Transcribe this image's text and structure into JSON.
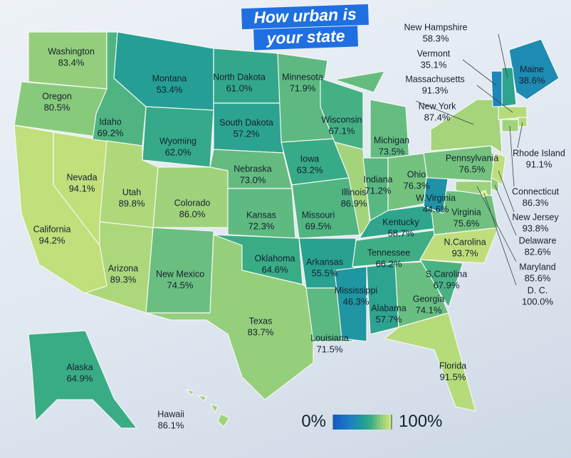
{
  "title": [
    "How urban is",
    "your state"
  ],
  "legend": {
    "ticks": [
      {
        "value": 0,
        "label": "0%"
      },
      {
        "value": 100,
        "label": "100%"
      }
    ]
  },
  "states": [
    {
      "name": "Washington",
      "value": 83.4,
      "value_label": "83.4%"
    },
    {
      "name": "Oregon",
      "value": 80.5,
      "value_label": "80.5%"
    },
    {
      "name": "California",
      "value": 94.2,
      "value_label": "94.2%"
    },
    {
      "name": "Nevada",
      "value": 94.1,
      "value_label": "94.1%"
    },
    {
      "name": "Idaho",
      "value": 69.2,
      "value_label": "69.2%"
    },
    {
      "name": "Montana",
      "value": 53.4,
      "value_label": "53.4%"
    },
    {
      "name": "Wyoming",
      "value": 62.0,
      "value_label": "62.0%"
    },
    {
      "name": "Utah",
      "value": 89.8,
      "value_label": "89.8%"
    },
    {
      "name": "Colorado",
      "value": 86.0,
      "value_label": "86.0%"
    },
    {
      "name": "Arizona",
      "value": 89.3,
      "value_label": "89.3%"
    },
    {
      "name": "New Mexico",
      "value": 74.5,
      "value_label": "74.5%"
    },
    {
      "name": "Texas",
      "value": 83.7,
      "value_label": "83.7%"
    },
    {
      "name": "North Dakota",
      "value": 61.0,
      "value_label": "61.0%"
    },
    {
      "name": "South Dakota",
      "value": 57.2,
      "value_label": "57.2%"
    },
    {
      "name": "Nebraska",
      "value": 73.0,
      "value_label": "73.0%"
    },
    {
      "name": "Kansas",
      "value": 72.3,
      "value_label": "72.3%"
    },
    {
      "name": "Oklahoma",
      "value": 64.6,
      "value_label": "64.6%"
    },
    {
      "name": "Minnesota",
      "value": 71.9,
      "value_label": "71.9%"
    },
    {
      "name": "Iowa",
      "value": 63.2,
      "value_label": "63.2%"
    },
    {
      "name": "Missouri",
      "value": 69.5,
      "value_label": "69.5%"
    },
    {
      "name": "Arkansas",
      "value": 55.5,
      "value_label": "55.5%"
    },
    {
      "name": "Louisiana",
      "value": 71.5,
      "value_label": "71.5%"
    },
    {
      "name": "Wisconsin",
      "value": 67.1,
      "value_label": "67.1%"
    },
    {
      "name": "Illinois",
      "value": 86.9,
      "value_label": "86.9%"
    },
    {
      "name": "Michigan",
      "value": 73.5,
      "value_label": "73.5%"
    },
    {
      "name": "Indiana",
      "value": 71.2,
      "value_label": "71.2%"
    },
    {
      "name": "Ohio",
      "value": 76.3,
      "value_label": "76.3%"
    },
    {
      "name": "Kentucky",
      "value": 58.7,
      "value_label": "58.7%"
    },
    {
      "name": "Tennessee",
      "value": 66.2,
      "value_label": "66.2%"
    },
    {
      "name": "Mississippi",
      "value": 46.3,
      "value_label": "46.3%"
    },
    {
      "name": "Alabama",
      "value": 57.7,
      "value_label": "57.7%"
    },
    {
      "name": "Georgia",
      "value": 74.1,
      "value_label": "74.1%"
    },
    {
      "name": "Florida",
      "value": 91.5,
      "value_label": "91.5%"
    },
    {
      "name": "S.Carolina",
      "value": 67.9,
      "value_label": "67.9%"
    },
    {
      "name": "N.Carolina",
      "value": 93.7,
      "value_label": "93.7%"
    },
    {
      "name": "Virginia",
      "value": 75.6,
      "value_label": "75.6%"
    },
    {
      "name": "W.Virginia",
      "value": 44.6,
      "value_label": "44.6%"
    },
    {
      "name": "Pennsylvania",
      "value": 76.5,
      "value_label": "76.5%"
    },
    {
      "name": "New York",
      "value": 87.4,
      "value_label": "87.4%"
    },
    {
      "name": "Maine",
      "value": 38.6,
      "value_label": "38.6%"
    },
    {
      "name": "New Hampshire",
      "value": 58.3,
      "value_label": "58.3%"
    },
    {
      "name": "Vermont",
      "value": 35.1,
      "value_label": "35.1%"
    },
    {
      "name": "Massachusetts",
      "value": 91.3,
      "value_label": "91.3%"
    },
    {
      "name": "Rhode Island",
      "value": 91.1,
      "value_label": "91.1%"
    },
    {
      "name": "Connecticut",
      "value": 86.3,
      "value_label": "86.3%"
    },
    {
      "name": "New Jersey",
      "value": 93.8,
      "value_label": "93.8%"
    },
    {
      "name": "Delaware",
      "value": 82.6,
      "value_label": "82.6%"
    },
    {
      "name": "Maryland",
      "value": 85.6,
      "value_label": "85.6%"
    },
    {
      "name": "D. C.",
      "value": 100.0,
      "value_label": "100.0%"
    },
    {
      "name": "Alaska",
      "value": 64.9,
      "value_label": "64.9%"
    },
    {
      "name": "Hawaii",
      "value": 86.1,
      "value_label": "86.1%"
    }
  ]
}
